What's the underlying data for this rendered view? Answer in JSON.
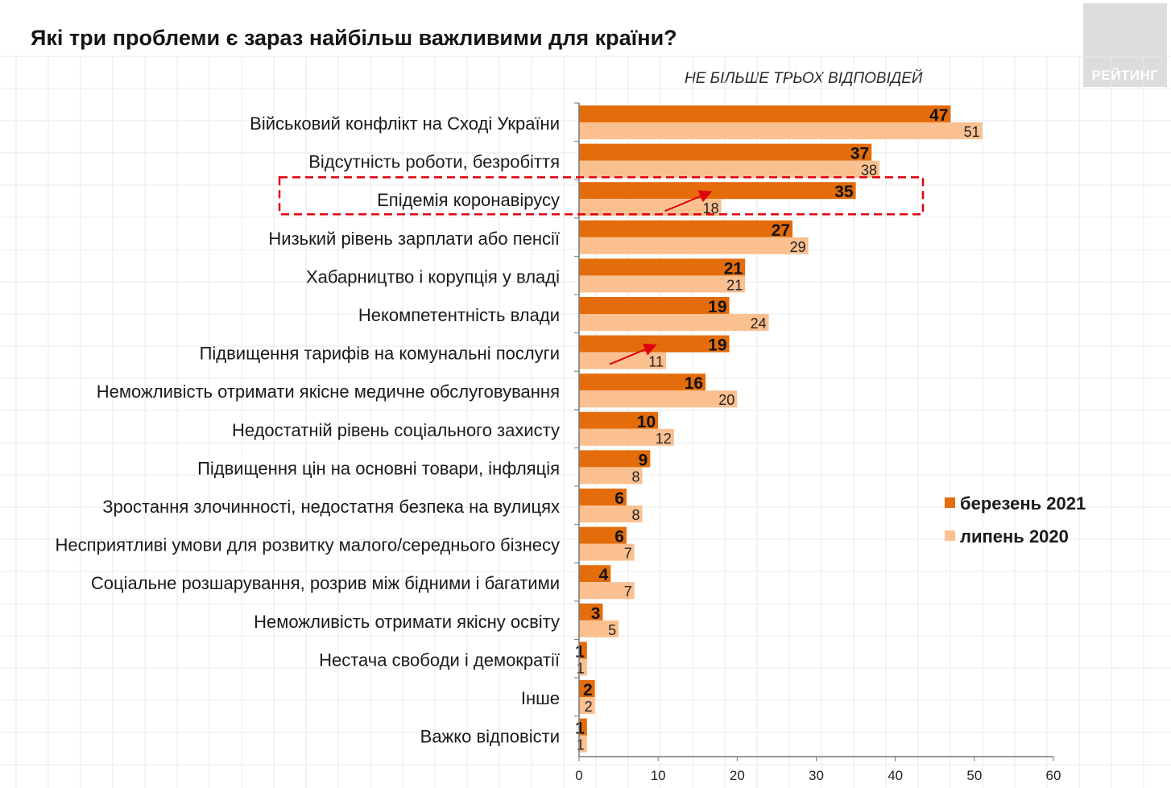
{
  "title": "Які три проблеми є зараз найбільш важливими для країни?",
  "subtitle": "НЕ БІЛЬШЕ ТРЬОХ ВІДПОВІДЕЙ",
  "logo_text": "РЕЙТИНГ",
  "colors": {
    "series_2021": "#E46C0A",
    "series_2020": "#FAC090",
    "highlight": "#E0000F",
    "arrow": "#E0000F",
    "grid": "#e9e9e9",
    "axis": "#777777"
  },
  "chart_data": {
    "type": "bar",
    "orientation": "horizontal",
    "categories": [
      "Військовий конфлікт на Сході України",
      "Відсутність роботи, безробіття",
      "Епідемія коронавірусу",
      "Низький рівень зарплати або пенсії",
      "Хабарництво і корупція у владі",
      "Некомпетентність влади",
      "Підвищення тарифів на комунальні послуги",
      "Неможливість отримати якісне медичне обслуговування",
      "Недостатній рівень соціального захисту",
      "Підвищення цін на основні товари, інфляція",
      "Зростання злочинності, недостатня безпека на вулицях",
      "Несприятливі умови для розвитку малого/середнього бізнесу",
      "Соціальне розшарування, розрив між бідними і багатими",
      "Неможливість отримати якісну освіту",
      "Нестача свободи і демократії",
      "Інше",
      "Важко відповісти"
    ],
    "series": [
      {
        "name": "березень 2021",
        "values": [
          47,
          37,
          35,
          27,
          21,
          19,
          19,
          16,
          10,
          9,
          6,
          6,
          4,
          3,
          1,
          2,
          1
        ]
      },
      {
        "name": "липень 2020",
        "values": [
          51,
          38,
          18,
          29,
          21,
          24,
          11,
          20,
          12,
          8,
          8,
          7,
          7,
          5,
          1,
          2,
          1
        ]
      }
    ],
    "xlim": [
      0,
      60
    ],
    "xticks": [
      0,
      10,
      20,
      30,
      40,
      50,
      60
    ],
    "xlabel": "",
    "ylabel": "",
    "legend_position": "right",
    "highlighted_category": "Епідемія коронавірусу",
    "arrow_categories": [
      "Епідемія коронавірусу",
      "Підвищення тарифів на комунальні послуги"
    ]
  }
}
